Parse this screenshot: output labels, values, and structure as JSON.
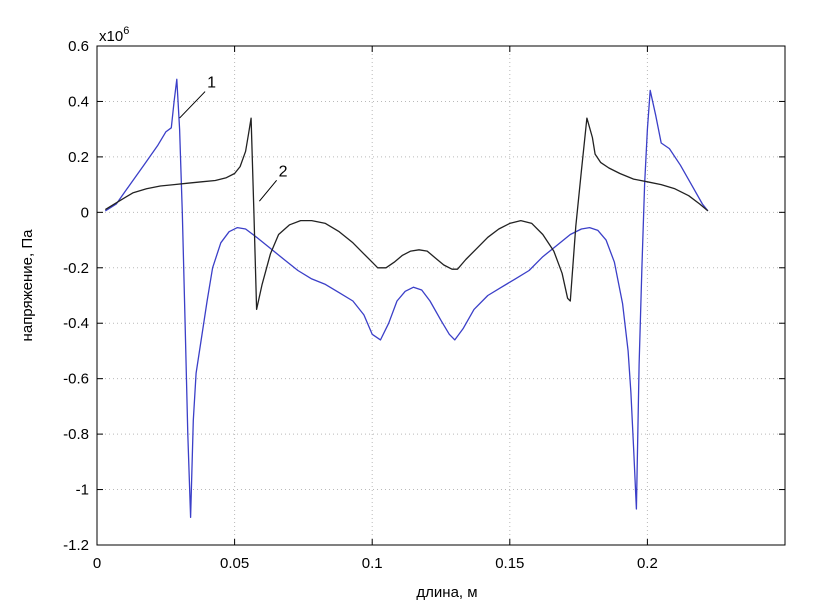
{
  "chart_data": {
    "type": "line",
    "xlabel": "длина, м",
    "ylabel": "напряжение, Па",
    "y_multiplier": {
      "base": "x10",
      "exponent": "6"
    },
    "xlim": [
      0,
      0.25
    ],
    "ylim": [
      -1.2,
      0.6
    ],
    "xticks": [
      0,
      0.05,
      0.1,
      0.15,
      0.2
    ],
    "xtick_labels": [
      "0",
      "0.05",
      "0.1",
      "0.15",
      "0.2"
    ],
    "yticks": [
      -1.2,
      -1.0,
      -0.8,
      -0.6,
      -0.4,
      -0.2,
      0,
      0.2,
      0.4,
      0.6
    ],
    "ytick_labels": [
      "-1.2",
      "-1",
      "-0.8",
      "-0.6",
      "-0.4",
      "-0.2",
      "0",
      "0.2",
      "0.4",
      "0.6"
    ],
    "grid": true,
    "series": [
      {
        "name": "1",
        "color": "#3b3fc8",
        "label_position": [
          0.04,
          0.45
        ],
        "label_leader_to": [
          0.03,
          0.34
        ],
        "points": [
          [
            0.003,
            0.005
          ],
          [
            0.007,
            0.03
          ],
          [
            0.012,
            0.1
          ],
          [
            0.017,
            0.17
          ],
          [
            0.022,
            0.24
          ],
          [
            0.025,
            0.29
          ],
          [
            0.027,
            0.305
          ],
          [
            0.028,
            0.4
          ],
          [
            0.029,
            0.48
          ],
          [
            0.03,
            0.3
          ],
          [
            0.031,
            0.0
          ],
          [
            0.032,
            -0.4
          ],
          [
            0.033,
            -0.8
          ],
          [
            0.034,
            -1.1
          ],
          [
            0.035,
            -0.75
          ],
          [
            0.036,
            -0.58
          ],
          [
            0.038,
            -0.45
          ],
          [
            0.04,
            -0.32
          ],
          [
            0.042,
            -0.2
          ],
          [
            0.045,
            -0.11
          ],
          [
            0.048,
            -0.07
          ],
          [
            0.051,
            -0.055
          ],
          [
            0.054,
            -0.06
          ],
          [
            0.058,
            -0.09
          ],
          [
            0.063,
            -0.13
          ],
          [
            0.068,
            -0.17
          ],
          [
            0.073,
            -0.21
          ],
          [
            0.078,
            -0.24
          ],
          [
            0.083,
            -0.26
          ],
          [
            0.088,
            -0.29
          ],
          [
            0.093,
            -0.32
          ],
          [
            0.097,
            -0.37
          ],
          [
            0.1,
            -0.44
          ],
          [
            0.103,
            -0.46
          ],
          [
            0.106,
            -0.4
          ],
          [
            0.109,
            -0.32
          ],
          [
            0.112,
            -0.285
          ],
          [
            0.115,
            -0.27
          ],
          [
            0.118,
            -0.28
          ],
          [
            0.121,
            -0.32
          ],
          [
            0.125,
            -0.39
          ],
          [
            0.128,
            -0.44
          ],
          [
            0.13,
            -0.46
          ],
          [
            0.133,
            -0.42
          ],
          [
            0.137,
            -0.35
          ],
          [
            0.142,
            -0.3
          ],
          [
            0.147,
            -0.27
          ],
          [
            0.152,
            -0.24
          ],
          [
            0.157,
            -0.21
          ],
          [
            0.162,
            -0.16
          ],
          [
            0.167,
            -0.12
          ],
          [
            0.172,
            -0.08
          ],
          [
            0.176,
            -0.06
          ],
          [
            0.179,
            -0.055
          ],
          [
            0.182,
            -0.065
          ],
          [
            0.185,
            -0.1
          ],
          [
            0.188,
            -0.18
          ],
          [
            0.191,
            -0.33
          ],
          [
            0.193,
            -0.5
          ],
          [
            0.194,
            -0.65
          ],
          [
            0.195,
            -0.85
          ],
          [
            0.196,
            -1.07
          ],
          [
            0.197,
            -0.55
          ],
          [
            0.198,
            -0.2
          ],
          [
            0.199,
            0.1
          ],
          [
            0.2,
            0.3
          ],
          [
            0.201,
            0.44
          ],
          [
            0.203,
            0.35
          ],
          [
            0.205,
            0.25
          ],
          [
            0.208,
            0.23
          ],
          [
            0.212,
            0.17
          ],
          [
            0.216,
            0.1
          ],
          [
            0.22,
            0.03
          ],
          [
            0.222,
            0.005
          ]
        ]
      },
      {
        "name": "2",
        "color": "#222222",
        "label_position": [
          0.066,
          0.13
        ],
        "label_leader_to": [
          0.059,
          0.04
        ],
        "points": [
          [
            0.003,
            0.01
          ],
          [
            0.008,
            0.04
          ],
          [
            0.013,
            0.07
          ],
          [
            0.018,
            0.085
          ],
          [
            0.023,
            0.095
          ],
          [
            0.028,
            0.1
          ],
          [
            0.033,
            0.105
          ],
          [
            0.038,
            0.11
          ],
          [
            0.043,
            0.115
          ],
          [
            0.047,
            0.125
          ],
          [
            0.05,
            0.14
          ],
          [
            0.052,
            0.165
          ],
          [
            0.054,
            0.22
          ],
          [
            0.055,
            0.28
          ],
          [
            0.056,
            0.34
          ],
          [
            0.057,
            0.0
          ],
          [
            0.058,
            -0.35
          ],
          [
            0.06,
            -0.26
          ],
          [
            0.063,
            -0.15
          ],
          [
            0.066,
            -0.08
          ],
          [
            0.07,
            -0.045
          ],
          [
            0.074,
            -0.03
          ],
          [
            0.078,
            -0.03
          ],
          [
            0.083,
            -0.04
          ],
          [
            0.088,
            -0.07
          ],
          [
            0.093,
            -0.11
          ],
          [
            0.097,
            -0.15
          ],
          [
            0.1,
            -0.18
          ],
          [
            0.102,
            -0.2
          ],
          [
            0.105,
            -0.2
          ],
          [
            0.108,
            -0.18
          ],
          [
            0.111,
            -0.155
          ],
          [
            0.114,
            -0.14
          ],
          [
            0.117,
            -0.135
          ],
          [
            0.12,
            -0.14
          ],
          [
            0.123,
            -0.165
          ],
          [
            0.126,
            -0.19
          ],
          [
            0.129,
            -0.205
          ],
          [
            0.131,
            -0.205
          ],
          [
            0.134,
            -0.17
          ],
          [
            0.138,
            -0.13
          ],
          [
            0.142,
            -0.09
          ],
          [
            0.146,
            -0.06
          ],
          [
            0.15,
            -0.04
          ],
          [
            0.154,
            -0.03
          ],
          [
            0.158,
            -0.04
          ],
          [
            0.162,
            -0.08
          ],
          [
            0.166,
            -0.14
          ],
          [
            0.169,
            -0.22
          ],
          [
            0.171,
            -0.31
          ],
          [
            0.172,
            -0.32
          ],
          [
            0.174,
            -0.05
          ],
          [
            0.176,
            0.15
          ],
          [
            0.178,
            0.34
          ],
          [
            0.18,
            0.27
          ],
          [
            0.181,
            0.21
          ],
          [
            0.183,
            0.18
          ],
          [
            0.186,
            0.16
          ],
          [
            0.19,
            0.14
          ],
          [
            0.195,
            0.12
          ],
          [
            0.2,
            0.11
          ],
          [
            0.205,
            0.1
          ],
          [
            0.21,
            0.085
          ],
          [
            0.215,
            0.06
          ],
          [
            0.219,
            0.03
          ],
          [
            0.222,
            0.005
          ]
        ]
      }
    ]
  }
}
